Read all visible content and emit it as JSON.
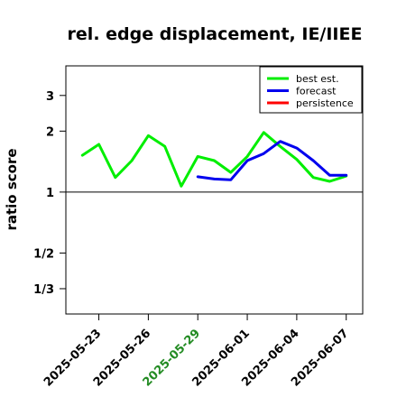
{
  "chart_data": {
    "type": "line",
    "title": "rel. edge displacement, IE/IIEE",
    "ylabel": "ratio score",
    "xlabel": "",
    "y_scale": "log",
    "ylim": [
      0.25,
      4.2
    ],
    "xlim": [
      "2025-05-21",
      "2025-06-08"
    ],
    "y_ticks": [
      {
        "value": 0.333333,
        "label": "1/3"
      },
      {
        "value": 0.5,
        "label": "1/2"
      },
      {
        "value": 1,
        "label": "1"
      },
      {
        "value": 2,
        "label": "2"
      },
      {
        "value": 3,
        "label": "3"
      }
    ],
    "x_ticks": [
      {
        "date": "2025-05-23",
        "label": "2025-05-23",
        "color": "#000000"
      },
      {
        "date": "2025-05-26",
        "label": "2025-05-26",
        "color": "#000000"
      },
      {
        "date": "2025-05-29",
        "label": "2025-05-29",
        "color": "#228B22"
      },
      {
        "date": "2025-06-01",
        "label": "2025-06-01",
        "color": "#000000"
      },
      {
        "date": "2025-06-04",
        "label": "2025-06-04",
        "color": "#000000"
      },
      {
        "date": "2025-06-07",
        "label": "2025-06-07",
        "color": "#000000"
      }
    ],
    "reference_line": 1,
    "grid": false,
    "legend_position": "top-right",
    "series": [
      {
        "name": "best est.",
        "color": "#00ee00",
        "x": [
          "2025-05-22",
          "2025-05-23",
          "2025-05-24",
          "2025-05-25",
          "2025-05-26",
          "2025-05-27",
          "2025-05-28",
          "2025-05-29",
          "2025-05-30",
          "2025-05-31",
          "2025-06-01",
          "2025-06-02",
          "2025-06-03",
          "2025-06-04",
          "2025-06-05",
          "2025-06-06",
          "2025-06-07"
        ],
        "y": [
          1.52,
          1.72,
          1.18,
          1.43,
          1.9,
          1.68,
          1.07,
          1.5,
          1.43,
          1.25,
          1.5,
          1.97,
          1.68,
          1.45,
          1.18,
          1.13,
          1.2
        ]
      },
      {
        "name": "forecast",
        "color": "#0000ee",
        "x": [
          "2025-05-29",
          "2025-05-30",
          "2025-05-31",
          "2025-06-01",
          "2025-06-02",
          "2025-06-03",
          "2025-06-04",
          "2025-06-05",
          "2025-06-06",
          "2025-06-07"
        ],
        "y": [
          1.19,
          1.16,
          1.15,
          1.43,
          1.55,
          1.78,
          1.65,
          1.43,
          1.21,
          1.21
        ]
      },
      {
        "name": "persistence",
        "color": "#ff0000",
        "x": [],
        "y": []
      }
    ]
  }
}
